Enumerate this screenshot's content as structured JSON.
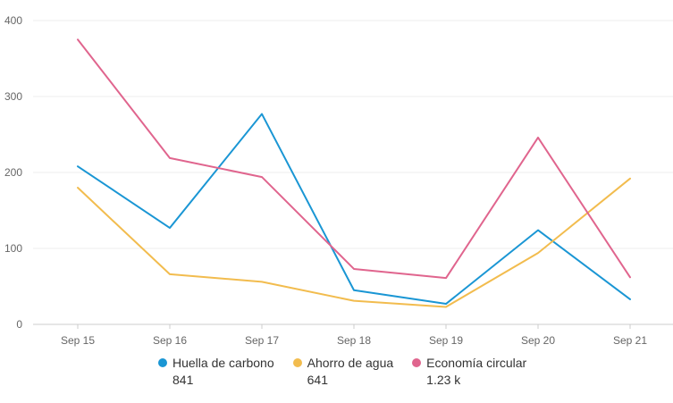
{
  "chart_data": {
    "type": "line",
    "categories": [
      "Sep 15",
      "Sep 16",
      "Sep 17",
      "Sep 18",
      "Sep 19",
      "Sep 20",
      "Sep 21"
    ],
    "ylim": [
      0,
      400
    ],
    "yticks": [
      0,
      100,
      200,
      300,
      400
    ],
    "grid": true,
    "legend_position": "bottom",
    "series": [
      {
        "name": "Huella de carbono",
        "total": "841",
        "color": "#1a96d4",
        "values": [
          208,
          127,
          277,
          45,
          27,
          124,
          33
        ]
      },
      {
        "name": "Ahorro de agua",
        "total": "641",
        "color": "#f2bc4e",
        "values": [
          180,
          66,
          56,
          31,
          23,
          94,
          192
        ]
      },
      {
        "name": "Economía circular",
        "total": "1.23 k",
        "color": "#e0658e",
        "values": [
          375,
          219,
          194,
          73,
          61,
          246,
          62
        ]
      }
    ]
  }
}
